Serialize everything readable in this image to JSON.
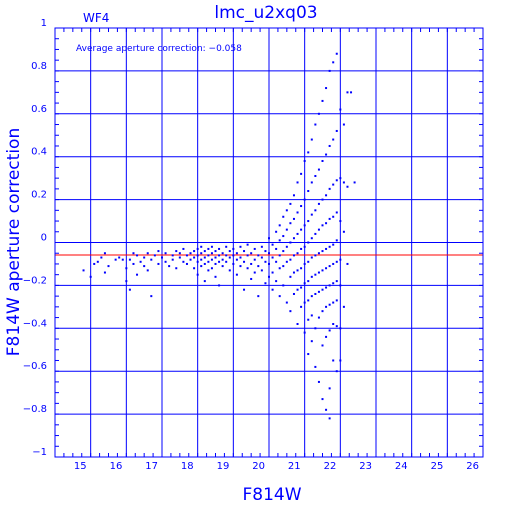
{
  "chart_data": {
    "type": "scatter",
    "title": "lmc_u2xq03",
    "subtitle": "WF4",
    "xlabel": "F814W",
    "ylabel": "F814W aperture correction",
    "xlim": [
      14,
      26
    ],
    "ylim": [
      -1,
      1
    ],
    "x_ticks": [
      15,
      16,
      17,
      18,
      19,
      20,
      21,
      22,
      23,
      24,
      25,
      26
    ],
    "y_ticks": [
      -1,
      -0.8,
      -0.6,
      -0.4,
      -0.2,
      0,
      0.2,
      0.4,
      0.6,
      0.8,
      1
    ],
    "y_tick_labels": [
      "−1",
      "−0.8",
      "−0.6",
      "−0.4",
      "−0.2",
      "0",
      "0.2",
      "0.4",
      "0.6",
      "0.8",
      "1"
    ],
    "grid": true,
    "annotation": "Average aperture correction:  −0.058",
    "reference_line": {
      "y": -0.058,
      "color": "#ff0000"
    },
    "colors": {
      "axis": "#0000ff",
      "points": "#0000ff",
      "reference": "#ff0000",
      "background": "#ffffff"
    },
    "points": [
      [
        14.8,
        -0.13
      ],
      [
        15.0,
        -0.16
      ],
      [
        15.1,
        -0.1
      ],
      [
        15.2,
        -0.09
      ],
      [
        15.3,
        -0.07
      ],
      [
        15.4,
        -0.05
      ],
      [
        15.4,
        -0.14
      ],
      [
        15.5,
        -0.11
      ],
      [
        15.7,
        -0.08
      ],
      [
        15.8,
        -0.07
      ],
      [
        15.9,
        -0.08
      ],
      [
        16.0,
        -0.12
      ],
      [
        16.0,
        -0.18
      ],
      [
        16.1,
        -0.22
      ],
      [
        16.1,
        -0.08
      ],
      [
        16.2,
        -0.05
      ],
      [
        16.2,
        -0.1
      ],
      [
        16.3,
        -0.06
      ],
      [
        16.3,
        -0.15
      ],
      [
        16.4,
        -0.09
      ],
      [
        16.5,
        -0.07
      ],
      [
        16.5,
        -0.11
      ],
      [
        16.6,
        -0.05
      ],
      [
        16.6,
        -0.13
      ],
      [
        16.7,
        -0.08
      ],
      [
        16.7,
        -0.25
      ],
      [
        16.8,
        -0.06
      ],
      [
        16.9,
        -0.1
      ],
      [
        16.9,
        -0.04
      ],
      [
        17.0,
        -0.07
      ],
      [
        17.1,
        -0.09
      ],
      [
        17.1,
        -0.05
      ],
      [
        17.2,
        -0.11
      ],
      [
        17.3,
        -0.06
      ],
      [
        17.3,
        -0.08
      ],
      [
        17.4,
        -0.04
      ],
      [
        17.4,
        -0.12
      ],
      [
        17.5,
        -0.07
      ],
      [
        17.5,
        -0.05
      ],
      [
        17.6,
        -0.09
      ],
      [
        17.6,
        -0.03
      ],
      [
        17.7,
        -0.06
      ],
      [
        17.7,
        -0.1
      ],
      [
        17.8,
        -0.05
      ],
      [
        17.8,
        -0.08
      ],
      [
        17.9,
        -0.04
      ],
      [
        17.9,
        -0.07
      ],
      [
        17.9,
        -0.12
      ],
      [
        18.0,
        -0.03
      ],
      [
        18.0,
        -0.06
      ],
      [
        18.0,
        -0.09
      ],
      [
        18.0,
        -0.15
      ],
      [
        18.1,
        -0.02
      ],
      [
        18.1,
        -0.05
      ],
      [
        18.1,
        -0.08
      ],
      [
        18.1,
        -0.11
      ],
      [
        18.2,
        -0.04
      ],
      [
        18.2,
        -0.07
      ],
      [
        18.2,
        -0.1
      ],
      [
        18.2,
        -0.18
      ],
      [
        18.3,
        -0.03
      ],
      [
        18.3,
        -0.06
      ],
      [
        18.3,
        -0.09
      ],
      [
        18.3,
        -0.13
      ],
      [
        18.4,
        -0.02
      ],
      [
        18.4,
        -0.05
      ],
      [
        18.4,
        -0.08
      ],
      [
        18.4,
        -0.12
      ],
      [
        18.5,
        -0.04
      ],
      [
        18.5,
        -0.07
      ],
      [
        18.5,
        -0.1
      ],
      [
        18.5,
        -0.16
      ],
      [
        18.6,
        -0.03
      ],
      [
        18.6,
        -0.06
      ],
      [
        18.6,
        -0.09
      ],
      [
        18.6,
        -0.2
      ],
      [
        18.7,
        -0.05
      ],
      [
        18.7,
        -0.08
      ],
      [
        18.7,
        -0.11
      ],
      [
        18.8,
        -0.02
      ],
      [
        18.8,
        -0.06
      ],
      [
        18.8,
        -0.09
      ],
      [
        18.9,
        -0.04
      ],
      [
        18.9,
        -0.07
      ],
      [
        18.9,
        -0.13
      ],
      [
        19.0,
        -0.03
      ],
      [
        19.0,
        -0.06
      ],
      [
        19.0,
        -0.1
      ],
      [
        19.1,
        -0.05
      ],
      [
        19.1,
        -0.08
      ],
      [
        19.1,
        -0.15
      ],
      [
        19.2,
        -0.02
      ],
      [
        19.2,
        -0.07
      ],
      [
        19.2,
        -0.11
      ],
      [
        19.3,
        -0.04
      ],
      [
        19.3,
        -0.09
      ],
      [
        19.3,
        -0.22
      ],
      [
        19.4,
        -0.06
      ],
      [
        19.4,
        -0.12
      ],
      [
        19.4,
        -0.01
      ],
      [
        19.5,
        -0.05
      ],
      [
        19.5,
        -0.1
      ],
      [
        19.5,
        -0.17
      ],
      [
        19.6,
        -0.03
      ],
      [
        19.6,
        -0.08
      ],
      [
        19.6,
        -0.14
      ],
      [
        19.7,
        -0.06
      ],
      [
        19.7,
        -0.11
      ],
      [
        19.7,
        -0.25
      ],
      [
        19.8,
        -0.02
      ],
      [
        19.8,
        -0.07
      ],
      [
        19.8,
        -0.13
      ],
      [
        19.9,
        -0.04
      ],
      [
        19.9,
        -0.09
      ],
      [
        19.9,
        -0.19
      ],
      [
        20.0,
        0.02
      ],
      [
        20.0,
        -0.05
      ],
      [
        20.0,
        -0.1
      ],
      [
        20.0,
        -0.16
      ],
      [
        20.1,
        -0.01
      ],
      [
        20.1,
        -0.07
      ],
      [
        20.1,
        -0.14
      ],
      [
        20.1,
        -0.22
      ],
      [
        20.2,
        0.05
      ],
      [
        20.2,
        -0.03
      ],
      [
        20.2,
        -0.09
      ],
      [
        20.2,
        -0.18
      ],
      [
        20.3,
        0.08
      ],
      [
        20.3,
        0.01
      ],
      [
        20.3,
        -0.06
      ],
      [
        20.3,
        -0.12
      ],
      [
        20.3,
        -0.25
      ],
      [
        20.4,
        0.12
      ],
      [
        20.4,
        0.03
      ],
      [
        20.4,
        -0.04
      ],
      [
        20.4,
        -0.11
      ],
      [
        20.4,
        -0.2
      ],
      [
        20.5,
        0.15
      ],
      [
        20.5,
        0.06
      ],
      [
        20.5,
        -0.02
      ],
      [
        20.5,
        -0.09
      ],
      [
        20.5,
        -0.28
      ],
      [
        20.6,
        0.18
      ],
      [
        20.6,
        0.09
      ],
      [
        20.6,
        0.0
      ],
      [
        20.6,
        -0.08
      ],
      [
        20.6,
        -0.16
      ],
      [
        20.6,
        -0.32
      ],
      [
        20.7,
        0.22
      ],
      [
        20.7,
        0.11
      ],
      [
        20.7,
        0.02
      ],
      [
        20.7,
        -0.06
      ],
      [
        20.7,
        -0.14
      ],
      [
        20.7,
        -0.24
      ],
      [
        20.8,
        0.28
      ],
      [
        20.8,
        0.14
      ],
      [
        20.8,
        0.04
      ],
      [
        20.8,
        -0.05
      ],
      [
        20.8,
        -0.13
      ],
      [
        20.8,
        -0.22
      ],
      [
        20.8,
        -0.38
      ],
      [
        20.9,
        0.32
      ],
      [
        20.9,
        0.17
      ],
      [
        20.9,
        0.06
      ],
      [
        20.9,
        -0.03
      ],
      [
        20.9,
        -0.12
      ],
      [
        20.9,
        -0.21
      ],
      [
        20.9,
        -0.3
      ],
      [
        21.0,
        0.38
      ],
      [
        21.0,
        0.2
      ],
      [
        21.0,
        0.08
      ],
      [
        21.0,
        -0.02
      ],
      [
        21.0,
        -0.1
      ],
      [
        21.0,
        -0.19
      ],
      [
        21.0,
        -0.28
      ],
      [
        21.0,
        -0.42
      ],
      [
        21.1,
        0.42
      ],
      [
        21.1,
        0.24
      ],
      [
        21.1,
        0.1
      ],
      [
        21.1,
        0.0
      ],
      [
        21.1,
        -0.09
      ],
      [
        21.1,
        -0.18
      ],
      [
        21.1,
        -0.27
      ],
      [
        21.1,
        -0.36
      ],
      [
        21.1,
        -0.52
      ],
      [
        21.2,
        0.48
      ],
      [
        21.2,
        0.28
      ],
      [
        21.2,
        0.13
      ],
      [
        21.2,
        0.02
      ],
      [
        21.2,
        -0.07
      ],
      [
        21.2,
        -0.16
      ],
      [
        21.2,
        -0.25
      ],
      [
        21.2,
        -0.34
      ],
      [
        21.2,
        -0.46
      ],
      [
        21.3,
        0.55
      ],
      [
        21.3,
        0.31
      ],
      [
        21.3,
        0.15
      ],
      [
        21.3,
        0.04
      ],
      [
        21.3,
        -0.06
      ],
      [
        21.3,
        -0.15
      ],
      [
        21.3,
        -0.24
      ],
      [
        21.3,
        -0.4
      ],
      [
        21.3,
        -0.58
      ],
      [
        21.4,
        0.6
      ],
      [
        21.4,
        0.34
      ],
      [
        21.4,
        0.18
      ],
      [
        21.4,
        0.06
      ],
      [
        21.4,
        -0.05
      ],
      [
        21.4,
        -0.14
      ],
      [
        21.4,
        -0.23
      ],
      [
        21.4,
        -0.35
      ],
      [
        21.4,
        -0.65
      ],
      [
        21.5,
        0.66
      ],
      [
        21.5,
        0.38
      ],
      [
        21.5,
        0.2
      ],
      [
        21.5,
        0.08
      ],
      [
        21.5,
        -0.04
      ],
      [
        21.5,
        -0.13
      ],
      [
        21.5,
        -0.22
      ],
      [
        21.5,
        -0.32
      ],
      [
        21.5,
        -0.48
      ],
      [
        21.5,
        -0.73
      ],
      [
        21.6,
        0.72
      ],
      [
        21.6,
        0.41
      ],
      [
        21.6,
        0.22
      ],
      [
        21.6,
        0.09
      ],
      [
        21.6,
        -0.03
      ],
      [
        21.6,
        -0.12
      ],
      [
        21.6,
        -0.21
      ],
      [
        21.6,
        -0.3
      ],
      [
        21.6,
        -0.44
      ],
      [
        21.6,
        -0.78
      ],
      [
        21.7,
        0.8
      ],
      [
        21.7,
        0.45
      ],
      [
        21.7,
        0.25
      ],
      [
        21.7,
        0.11
      ],
      [
        21.7,
        -0.02
      ],
      [
        21.7,
        -0.11
      ],
      [
        21.7,
        -0.2
      ],
      [
        21.7,
        -0.29
      ],
      [
        21.7,
        -0.41
      ],
      [
        21.7,
        -0.68
      ],
      [
        21.7,
        -0.82
      ],
      [
        21.8,
        0.84
      ],
      [
        21.8,
        0.48
      ],
      [
        21.8,
        0.27
      ],
      [
        21.8,
        0.12
      ],
      [
        21.8,
        -0.01
      ],
      [
        21.8,
        -0.1
      ],
      [
        21.8,
        -0.19
      ],
      [
        21.8,
        -0.28
      ],
      [
        21.8,
        -0.38
      ],
      [
        21.8,
        -0.55
      ],
      [
        21.9,
        0.88
      ],
      [
        21.9,
        0.52
      ],
      [
        21.9,
        0.29
      ],
      [
        21.9,
        0.14
      ],
      [
        21.9,
        0.01
      ],
      [
        21.9,
        -0.09
      ],
      [
        21.9,
        -0.18
      ],
      [
        21.9,
        -0.27
      ],
      [
        21.9,
        -0.39
      ],
      [
        21.9,
        -0.6
      ],
      [
        22.0,
        0.62
      ],
      [
        22.0,
        0.3
      ],
      [
        22.0,
        0.1
      ],
      [
        22.0,
        -0.08
      ],
      [
        22.0,
        -0.2
      ],
      [
        22.0,
        -0.4
      ],
      [
        22.0,
        -0.55
      ],
      [
        22.1,
        0.55
      ],
      [
        22.1,
        0.28
      ],
      [
        22.1,
        0.05
      ],
      [
        22.1,
        -0.3
      ],
      [
        22.2,
        0.7
      ],
      [
        22.2,
        0.26
      ],
      [
        22.2,
        -0.1
      ],
      [
        22.3,
        0.7
      ],
      [
        22.4,
        0.28
      ]
    ]
  }
}
